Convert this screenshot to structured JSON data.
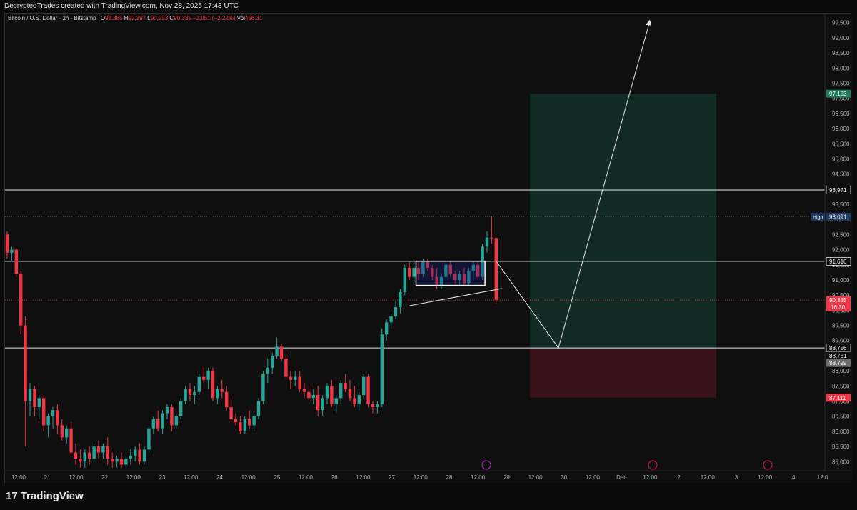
{
  "header": {
    "attribution": "DecryptedTrades created with TradingView.com, Nov 28, 2025 17:43 UTC"
  },
  "footer": {
    "brand": "TradingView",
    "brand_mark": "17"
  },
  "legend": {
    "symbol": "Bitcoin / U.S. Dollar · 2h · Bitstamp",
    "o_label": "O",
    "o": "92,385",
    "h_label": "H",
    "h": "92,397",
    "l_label": "L",
    "l": "90,233",
    "c_label": "C",
    "c": "90,335",
    "change": "−2,051 (−2.22%)",
    "vol_label": "Vol",
    "vol": "456.31"
  },
  "colors": {
    "up": "#26a69a",
    "down": "#f23645",
    "bg": "#0f0f0f",
    "grid": "#1a1a1a",
    "target_zone": "#143d33",
    "stop_zone": "#4a1420",
    "line": "#e8e8e8"
  },
  "chart_data": {
    "type": "candlestick",
    "symbol": "BTCUSD",
    "exchange": "Bitstamp",
    "interval": "2h",
    "ylim": [
      84700,
      99800
    ],
    "y_ticks": [
      "85,000",
      "85,500",
      "86,000",
      "86,500",
      "87,000",
      "87,500",
      "88,000",
      "88,500",
      "89,000",
      "89,500",
      "90,000",
      "90,500",
      "91,000",
      "91,500",
      "92,000",
      "92,500",
      "93,000",
      "93,500",
      "94,000",
      "94,500",
      "95,000",
      "95,500",
      "96,000",
      "96,500",
      "97,000",
      "97,500",
      "98,000",
      "98,500",
      "99,000",
      "99,500"
    ],
    "x_ticks": [
      "12:00",
      "21",
      "12:00",
      "22",
      "12:00",
      "23",
      "12:00",
      "24",
      "12:00",
      "25",
      "12:00",
      "26",
      "12:00",
      "27",
      "12:00",
      "28",
      "12:00",
      "29",
      "12:00",
      "30",
      "12:00",
      "Dec",
      "12:00",
      "2",
      "12:00",
      "3",
      "12:00",
      "4",
      "12:0"
    ],
    "candles": [
      [
        92500,
        92600,
        91700,
        91900
      ],
      [
        91900,
        92100,
        91600,
        92000
      ],
      [
        92000,
        92050,
        91100,
        91200
      ],
      [
        91200,
        91300,
        89200,
        89500
      ],
      [
        89500,
        89800,
        85500,
        87000
      ],
      [
        87000,
        87600,
        86500,
        87400
      ],
      [
        87400,
        87500,
        86500,
        86800
      ],
      [
        86800,
        87200,
        86400,
        87100
      ],
      [
        87100,
        87200,
        86000,
        86200
      ],
      [
        86200,
        86600,
        85800,
        86500
      ],
      [
        86500,
        86800,
        86100,
        86700
      ],
      [
        86700,
        86900,
        85900,
        86200
      ],
      [
        86200,
        86400,
        85700,
        85800
      ],
      [
        85800,
        86200,
        85600,
        86100
      ],
      [
        86100,
        86300,
        85200,
        85300
      ],
      [
        85300,
        85600,
        84900,
        85100
      ],
      [
        85100,
        85400,
        84800,
        85000
      ],
      [
        85000,
        85400,
        84800,
        85300
      ],
      [
        85300,
        85500,
        84900,
        85100
      ],
      [
        85100,
        85600,
        85000,
        85500
      ],
      [
        85500,
        85700,
        85100,
        85300
      ],
      [
        85300,
        85600,
        85100,
        85500
      ],
      [
        85500,
        85800,
        84900,
        85100
      ],
      [
        85100,
        85300,
        84800,
        85000
      ],
      [
        85000,
        85200,
        84800,
        85100
      ],
      [
        85100,
        85300,
        84800,
        84900
      ],
      [
        84900,
        85200,
        84800,
        85100
      ],
      [
        85100,
        85400,
        84900,
        85200
      ],
      [
        85200,
        85500,
        85000,
        85400
      ],
      [
        85400,
        85600,
        84900,
        85000
      ],
      [
        85000,
        85500,
        84900,
        85400
      ],
      [
        85400,
        86200,
        85300,
        86100
      ],
      [
        86100,
        86500,
        85900,
        86400
      ],
      [
        86400,
        86700,
        86000,
        86100
      ],
      [
        86100,
        86700,
        85900,
        86600
      ],
      [
        86600,
        86900,
        86400,
        86800
      ],
      [
        86800,
        86900,
        86000,
        86200
      ],
      [
        86200,
        86600,
        86100,
        86500
      ],
      [
        86500,
        87100,
        86400,
        87000
      ],
      [
        87000,
        87500,
        86900,
        87400
      ],
      [
        87400,
        87600,
        87000,
        87200
      ],
      [
        87200,
        87500,
        86900,
        87300
      ],
      [
        87300,
        87900,
        87200,
        87800
      ],
      [
        87800,
        88100,
        87600,
        87700
      ],
      [
        87700,
        88100,
        87400,
        88000
      ],
      [
        88000,
        88100,
        87000,
        87100
      ],
      [
        87100,
        87500,
        86900,
        87400
      ],
      [
        87400,
        87700,
        87100,
        87300
      ],
      [
        87300,
        87500,
        86700,
        86800
      ],
      [
        86800,
        87100,
        86300,
        86400
      ],
      [
        86400,
        86600,
        86200,
        86300
      ],
      [
        86300,
        86500,
        85900,
        86000
      ],
      [
        86000,
        86500,
        85900,
        86400
      ],
      [
        86400,
        86700,
        86100,
        86200
      ],
      [
        86200,
        86600,
        86000,
        86500
      ],
      [
        86500,
        87100,
        86400,
        87000
      ],
      [
        87000,
        88000,
        86900,
        87900
      ],
      [
        87900,
        88400,
        87600,
        88100
      ],
      [
        88100,
        88600,
        87900,
        88500
      ],
      [
        88500,
        89100,
        88400,
        88800
      ],
      [
        88800,
        88900,
        88300,
        88400
      ],
      [
        88400,
        88600,
        87700,
        87800
      ],
      [
        87800,
        88000,
        87400,
        87700
      ],
      [
        87700,
        88000,
        87500,
        87800
      ],
      [
        87800,
        88000,
        87300,
        87400
      ],
      [
        87400,
        87600,
        87100,
        87300
      ],
      [
        87300,
        87500,
        87000,
        87100
      ],
      [
        87100,
        87400,
        86900,
        87200
      ],
      [
        87200,
        87500,
        86500,
        86700
      ],
      [
        86700,
        87200,
        86500,
        87100
      ],
      [
        87100,
        87600,
        86900,
        87500
      ],
      [
        87500,
        87700,
        86800,
        86900
      ],
      [
        86900,
        87200,
        86600,
        87100
      ],
      [
        87100,
        87700,
        86900,
        87600
      ],
      [
        87600,
        87900,
        87300,
        87400
      ],
      [
        87400,
        87700,
        87000,
        87100
      ],
      [
        87100,
        87500,
        86800,
        86900
      ],
      [
        86900,
        87300,
        86700,
        87200
      ],
      [
        87200,
        87900,
        87100,
        87800
      ],
      [
        87800,
        87900,
        86800,
        86900
      ],
      [
        86900,
        87000,
        86600,
        86800
      ],
      [
        86800,
        87000,
        86600,
        86900
      ],
      [
        86900,
        89400,
        86800,
        89200
      ],
      [
        89200,
        89700,
        89000,
        89600
      ],
      [
        89600,
        89900,
        89400,
        89800
      ],
      [
        89800,
        90300,
        89700,
        90100
      ],
      [
        90100,
        90700,
        89900,
        90600
      ],
      [
        90600,
        91500,
        90500,
        91400
      ],
      [
        91400,
        91600,
        91000,
        91100
      ],
      [
        91100,
        91500,
        90900,
        91400
      ],
      [
        91400,
        91600,
        91000,
        91200
      ],
      [
        91200,
        91700,
        91100,
        91600
      ],
      [
        91600,
        91700,
        91300,
        91400
      ],
      [
        91400,
        91500,
        91000,
        91100
      ],
      [
        91100,
        91400,
        90700,
        90800
      ],
      [
        90800,
        91200,
        90700,
        91100
      ],
      [
        91100,
        91600,
        91000,
        91500
      ],
      [
        91500,
        91600,
        91100,
        91200
      ],
      [
        91200,
        91300,
        90900,
        91000
      ],
      [
        91000,
        91300,
        90800,
        91200
      ],
      [
        91200,
        91400,
        90800,
        90900
      ],
      [
        90900,
        91400,
        90800,
        91300
      ],
      [
        91300,
        91600,
        91000,
        91500
      ],
      [
        91500,
        91600,
        91000,
        91100
      ],
      [
        91100,
        92200,
        91000,
        92100
      ],
      [
        92100,
        92600,
        91900,
        92400
      ],
      [
        92400,
        93091,
        92200,
        92385
      ],
      [
        92385,
        92397,
        90233,
        90335
      ]
    ],
    "horizontal_levels": [
      {
        "value": 93971,
        "label": "93,971"
      },
      {
        "value": 91616,
        "label": "91,616"
      },
      {
        "value": 88756,
        "label": "88,756"
      }
    ],
    "high_marker": {
      "label": "High",
      "value": 93091,
      "text": "93,091"
    },
    "current_price": {
      "value": 90335,
      "text": "90,335",
      "countdown": "16:30"
    },
    "position": {
      "target": 97153,
      "target_text": "97,153",
      "entry_low": 88731,
      "entry_low_text": "88,731",
      "entry_mid_text": "88,729",
      "stop": 87111,
      "stop_text": "87,111"
    },
    "consolidation_box": {
      "from_index": 90,
      "to_index": 104,
      "low": 90820,
      "high": 91620
    },
    "projection": [
      [
        105,
        91616
      ],
      [
        112,
        88756
      ],
      [
        140,
        99550
      ]
    ]
  }
}
